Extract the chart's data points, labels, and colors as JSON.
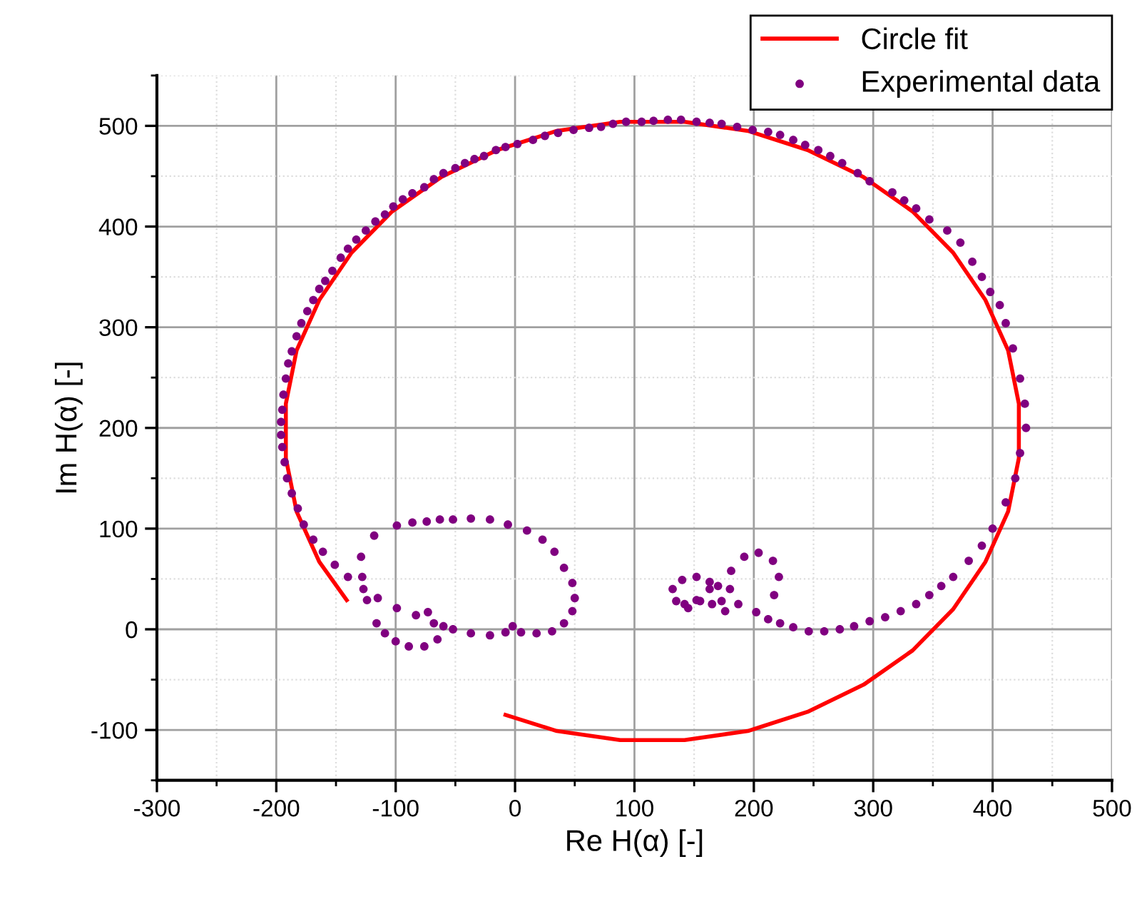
{
  "chart_data": {
    "type": "scatter",
    "xlabel": "Re H(α) [-]",
    "ylabel": "Im H(α) [-]",
    "xlim": [
      -300,
      500
    ],
    "ylim": [
      -150,
      550
    ],
    "xticks": [
      -300,
      {
        "value": -250,
        "label": null
      },
      -200,
      {
        "value": -150,
        "label": null
      },
      -100,
      {
        "value": -50,
        "label": null
      },
      0,
      {
        "value": 50,
        "label": null
      },
      100,
      {
        "value": 150,
        "label": null
      },
      200,
      {
        "value": 250,
        "label": null
      },
      300,
      {
        "value": 350,
        "label": null
      },
      400,
      {
        "value": 450,
        "label": null
      },
      500
    ],
    "yticks": [
      {
        "value": -150,
        "label": null
      },
      -100,
      {
        "value": -50,
        "label": null
      },
      0,
      {
        "value": 50,
        "label": null
      },
      100,
      {
        "value": 150,
        "label": null
      },
      200,
      {
        "value": 250,
        "label": null
      },
      300,
      {
        "value": 350,
        "label": null
      },
      400,
      {
        "value": 450,
        "label": null
      },
      500,
      {
        "value": 550,
        "label": null
      }
    ],
    "grid": true,
    "legend": "top right",
    "series": [
      {
        "name": "Circle fit",
        "type": "line",
        "color": "#ff0000",
        "marker": "none",
        "line_style": "solid",
        "x": [
          -141,
          -164,
          -183,
          -192,
          -192,
          -183,
          -164,
          -137,
          -103,
          -62,
          -15,
          35,
          88,
          142,
          195,
          245,
          292,
          333,
          367,
          394,
          413,
          422,
          422,
          413,
          394,
          367,
          333,
          292,
          245,
          195,
          142,
          88,
          35,
          -8
        ],
        "values": [
          29,
          67,
          117,
          170,
          224,
          277,
          327,
          374,
          415,
          449,
          476,
          495,
          504,
          504,
          495,
          476,
          449,
          415,
          374,
          327,
          277,
          224,
          170,
          117,
          67,
          20,
          -21,
          -55,
          -82,
          -101,
          -110,
          -110,
          -101,
          -85
        ]
      },
      {
        "name": "Experimental data",
        "color": "#800080",
        "marker": "circle",
        "x": [
          400,
          411,
          419,
          423,
          428,
          427,
          423,
          417,
          411,
          406,
          398,
          391,
          383,
          373,
          362,
          347,
          336,
          326,
          316,
          297,
          287,
          274,
          264,
          254,
          243,
          233,
          222,
          212,
          199,
          186,
          173,
          163,
          152,
          139,
          128,
          116,
          106,
          93,
          82,
          72,
          62,
          49,
          36,
          25,
          15,
          2,
          -8,
          -16,
          -26,
          -34,
          -42,
          -50,
          -60,
          -68,
          -76,
          -86,
          -94,
          -102,
          -109,
          -117,
          -125,
          -133,
          -140,
          -146,
          -153,
          -159,
          -164,
          -169,
          -174,
          -179,
          -183,
          -187,
          -190,
          -192,
          -194,
          -195,
          -196,
          -196,
          -195,
          -193,
          -191,
          -187,
          -182,
          -177,
          -169,
          -161,
          -151,
          -140,
          -127,
          -115,
          -99,
          -83,
          -68,
          -52,
          -37,
          -21,
          -8,
          -2,
          5,
          18,
          31,
          41,
          48,
          50,
          48,
          41,
          33,
          23,
          10,
          -6,
          -21,
          -37,
          -52,
          -63,
          -74,
          -86,
          -99,
          -118,
          -129,
          -128,
          -124,
          -116,
          -109,
          -100,
          -89,
          -76,
          -65,
          -60,
          -73,
          391,
          380,
          367,
          357,
          347,
          336,
          323,
          310,
          297,
          284,
          272,
          259,
          246,
          233,
          222,
          212,
          202,
          217,
          221,
          216,
          204,
          192,
          181,
          180,
          187,
          176,
          165,
          163,
          170,
          173,
          155,
          145,
          135,
          132,
          140,
          152,
          163,
          152,
          142
        ],
        "values": [
          100,
          126,
          150,
          175,
          200,
          224,
          249,
          279,
          304,
          322,
          335,
          350,
          365,
          384,
          396,
          407,
          418,
          426,
          434,
          445,
          453,
          463,
          470,
          476,
          481,
          486,
          491,
          494,
          496,
          499,
          502,
          503,
          504,
          506,
          506,
          505,
          504,
          504,
          502,
          499,
          498,
          496,
          493,
          490,
          486,
          482,
          479,
          476,
          470,
          467,
          463,
          458,
          453,
          447,
          439,
          433,
          427,
          420,
          412,
          405,
          396,
          387,
          378,
          369,
          356,
          346,
          338,
          327,
          316,
          304,
          291,
          276,
          264,
          249,
          233,
          218,
          206,
          193,
          181,
          166,
          150,
          135,
          120,
          104,
          89,
          77,
          64,
          52,
          40,
          31,
          21,
          14,
          6,
          0,
          -4,
          -6,
          -3,
          3,
          -3,
          -4,
          -2,
          6,
          18,
          31,
          46,
          61,
          77,
          89,
          98,
          104,
          109,
          110,
          109,
          109,
          107,
          106,
          103,
          93,
          72,
          52,
          29,
          6,
          -4,
          -12,
          -17,
          -17,
          -10,
          3,
          17,
          83,
          68,
          52,
          43,
          34,
          25,
          18,
          12,
          8,
          3,
          0,
          -2,
          -2,
          2,
          6,
          10,
          17,
          34,
          52,
          68,
          76,
          72,
          58,
          40,
          25,
          18,
          25,
          40,
          43,
          28,
          28,
          21,
          28,
          40,
          49,
          52,
          47,
          29,
          25
        ]
      }
    ]
  }
}
